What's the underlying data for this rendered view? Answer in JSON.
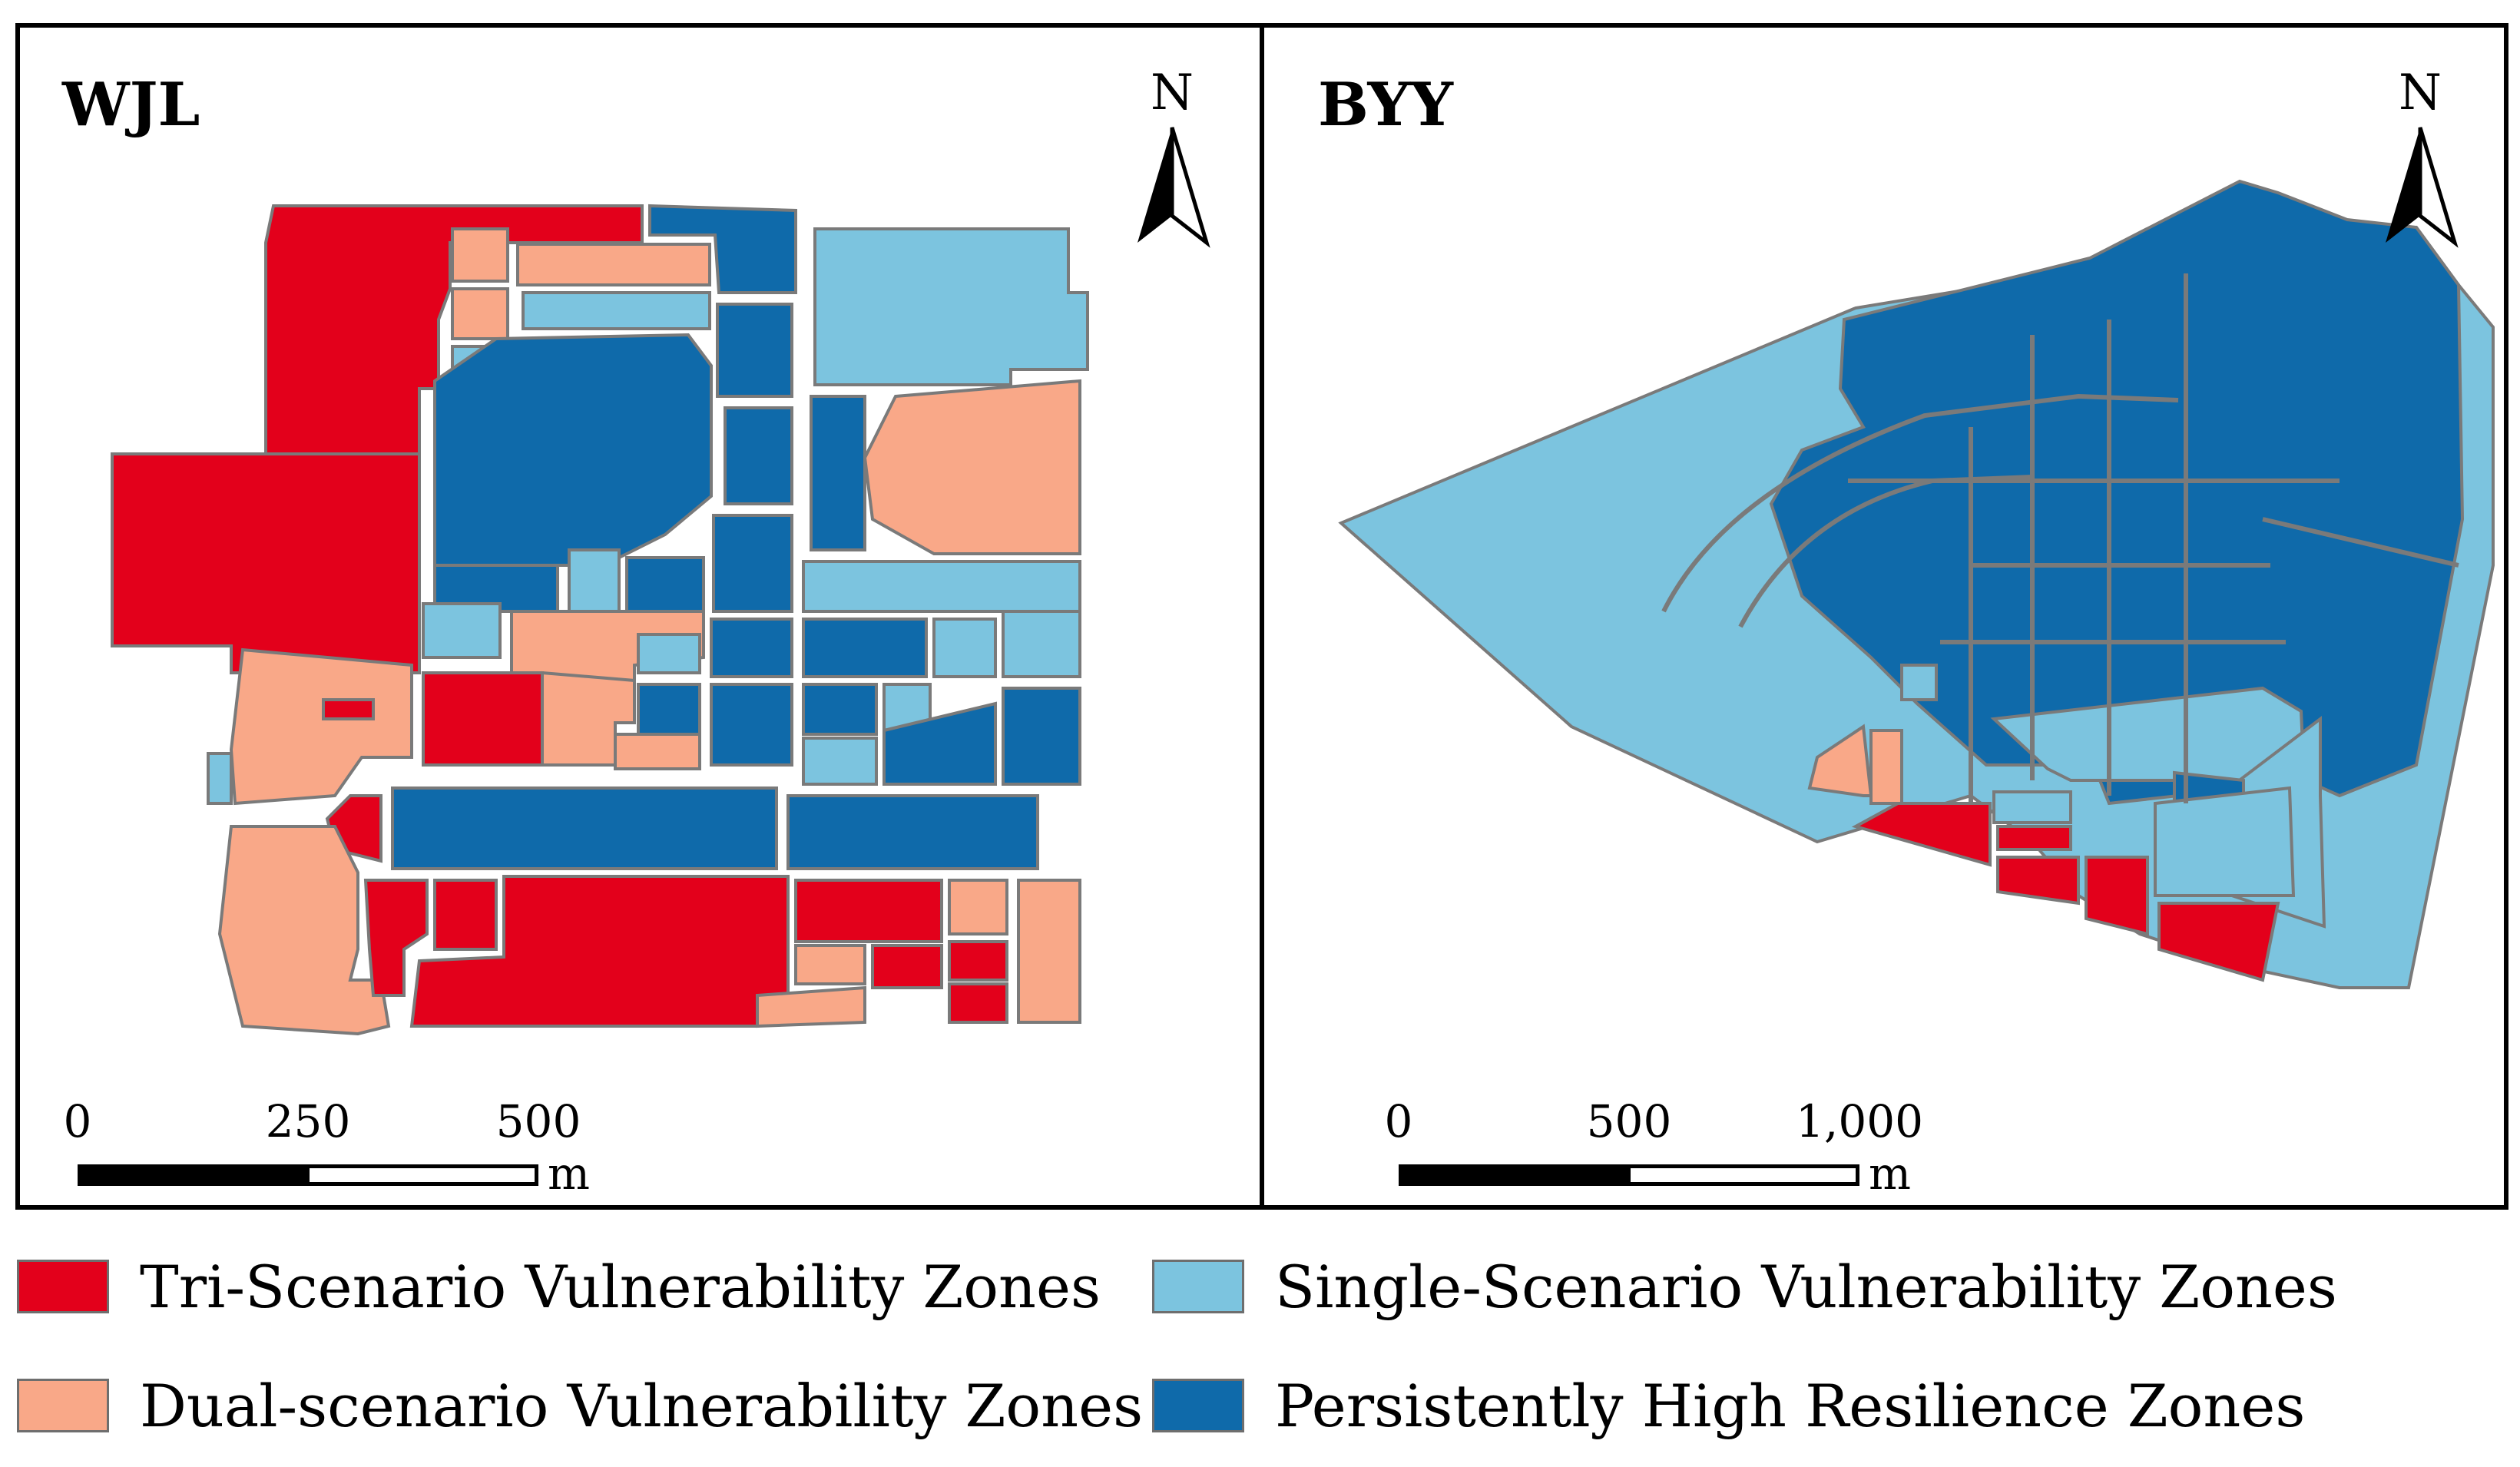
{
  "colors": {
    "tri": "#e3001b",
    "dual": "#f9a888",
    "single": "#7cc4df",
    "high": "#0f6aaa",
    "road": "#7a7a7a"
  },
  "panels": {
    "left": {
      "title": "WJL",
      "north_label": "N",
      "scale_ticks": [
        "0",
        "250",
        "500"
      ],
      "scale_unit": "m"
    },
    "right": {
      "title": "BYY",
      "north_label": "N",
      "scale_ticks": [
        "0",
        "500",
        "1,000"
      ],
      "scale_unit": "m"
    }
  },
  "legend": [
    {
      "label": "Tri-Scenario Vulnerability Zones",
      "color": "#e3001b"
    },
    {
      "label": "Single-Scenario Vulnerability Zones",
      "color": "#7cc4df"
    },
    {
      "label": "Dual-scenario Vulnerability Zones",
      "color": "#f9a888"
    },
    {
      "label": "Persistently High Resilience Zones",
      "color": "#0f6aaa"
    }
  ]
}
